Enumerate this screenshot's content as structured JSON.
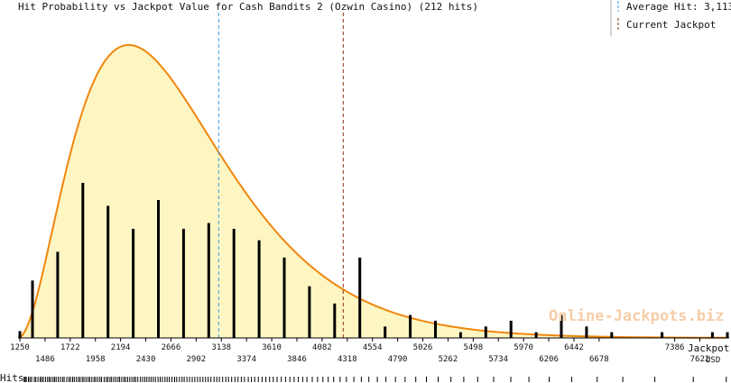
{
  "chart_data": {
    "type": "bar",
    "title": "Hit Probability vs Jackpot Value for Cash Bandits 2 (Ozwin Casino) (212 hits)",
    "xlabel": "Jackpot,",
    "xlabel_unit": "USD",
    "hits_label": "Hits",
    "watermark": "Online-Jackpots.biz",
    "xlim": [
      1250,
      7880
    ],
    "ticks_top": [
      1250,
      1722,
      2194,
      2666,
      3138,
      3610,
      4082,
      4554,
      5026,
      5498,
      5970,
      6442,
      7386
    ],
    "ticks_bottom": [
      1486,
      1958,
      2430,
      2902,
      3374,
      3846,
      4318,
      4790,
      5262,
      5734,
      6206,
      6678,
      7622
    ],
    "tick_labels_top": [
      "1250",
      "1722",
      "2194",
      "2666",
      "3138",
      "3610",
      "4082",
      "4554",
      "5026",
      "5498",
      "5970",
      "6442",
      "7386"
    ],
    "tick_labels_bottom": [
      "1486",
      "1958",
      "2430",
      "2902",
      "3374",
      "3846",
      "4318",
      "4790",
      "5262",
      "5734",
      "6206",
      "6678",
      "7622"
    ],
    "legend": {
      "average_label": "Average Hit: 3,113",
      "current_label": "Current Jackpot"
    },
    "average_hit": 3113,
    "current_jackpot": 4280,
    "bars": {
      "x": [
        1250,
        1368,
        1604,
        1840,
        2076,
        2312,
        2548,
        2784,
        3020,
        3256,
        3492,
        3728,
        3964,
        4200,
        4436,
        4672,
        4908,
        5144,
        5380,
        5616,
        5852,
        6088,
        6324,
        6560,
        6796,
        7268,
        7740,
        7880
      ],
      "values": [
        0.012,
        0.1,
        0.15,
        0.27,
        0.23,
        0.19,
        0.24,
        0.19,
        0.2,
        0.19,
        0.17,
        0.14,
        0.09,
        0.06,
        0.14,
        0.02,
        0.04,
        0.03,
        0.01,
        0.02,
        0.03,
        0.01,
        0.04,
        0.02,
        0.01,
        0.01,
        0.01,
        0.01
      ]
    },
    "curve": {
      "peak_x": 2270,
      "peak_value": 0.51,
      "shape": "right-skewed density",
      "fill": "#fdf6c3",
      "stroke": "#f0860f"
    },
    "ylim": [
      0,
      0.56
    ],
    "hit_positions": [
      1290,
      1300,
      1310,
      1330,
      1345,
      1360,
      1385,
      1400,
      1420,
      1440,
      1455,
      1470,
      1490,
      1510,
      1525,
      1540,
      1560,
      1575,
      1590,
      1610,
      1630,
      1650,
      1665,
      1690,
      1710,
      1725,
      1745,
      1760,
      1780,
      1800,
      1815,
      1835,
      1850,
      1870,
      1890,
      1905,
      1925,
      1945,
      1960,
      1980,
      2000,
      2015,
      2040,
      2060,
      2075,
      2095,
      2110,
      2130,
      2150,
      2170,
      2185,
      2205,
      2225,
      2240,
      2260,
      2280,
      2300,
      2320,
      2335,
      2355,
      2380,
      2400,
      2420,
      2440,
      2460,
      2480,
      2500,
      2520,
      2545,
      2565,
      2585,
      2610,
      2630,
      2650,
      2675,
      2700,
      2720,
      2745,
      2770,
      2790,
      2815,
      2840,
      2865,
      2890,
      2915,
      2940,
      2965,
      2990,
      3015,
      3040,
      3070,
      3095,
      3120,
      3150,
      3180,
      3205,
      3235,
      3265,
      3295,
      3325,
      3355,
      3390,
      3420,
      3450,
      3485,
      3520,
      3555,
      3590,
      3625,
      3660,
      3700,
      3740,
      3780,
      3820,
      3860,
      3900,
      3940,
      3990,
      4040,
      4090,
      4140,
      4190,
      4250,
      4310,
      4380,
      4450,
      4520,
      4600,
      4680,
      4770,
      4860,
      4960,
      5060,
      5170,
      5290,
      5410,
      5540,
      5690,
      5850,
      6020,
      6210,
      6420,
      6660,
      6900,
      7200,
      7560,
      7870
    ]
  }
}
